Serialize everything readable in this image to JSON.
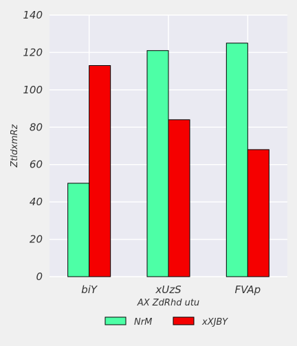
{
  "chart_data": {
    "type": "bar",
    "categories": [
      "biY",
      "xUzS",
      "FVAp"
    ],
    "series": [
      {
        "name": "NrM",
        "values": [
          50,
          121,
          125
        ],
        "color": "#4dffa6"
      },
      {
        "name": "xXJBY",
        "values": [
          113,
          84,
          68
        ],
        "color": "#f50000"
      }
    ],
    "title": "",
    "xlabel": "AX ZdRhd utu",
    "ylabel": "ZtIdxmRz",
    "ylim": [
      0,
      140
    ],
    "yticks": [
      0,
      20,
      40,
      60,
      80,
      100,
      120,
      140
    ],
    "grid": true,
    "legend_position": "bottom-center",
    "plot_background": "#eaeaf2",
    "page_background": "#f0f0f0"
  }
}
